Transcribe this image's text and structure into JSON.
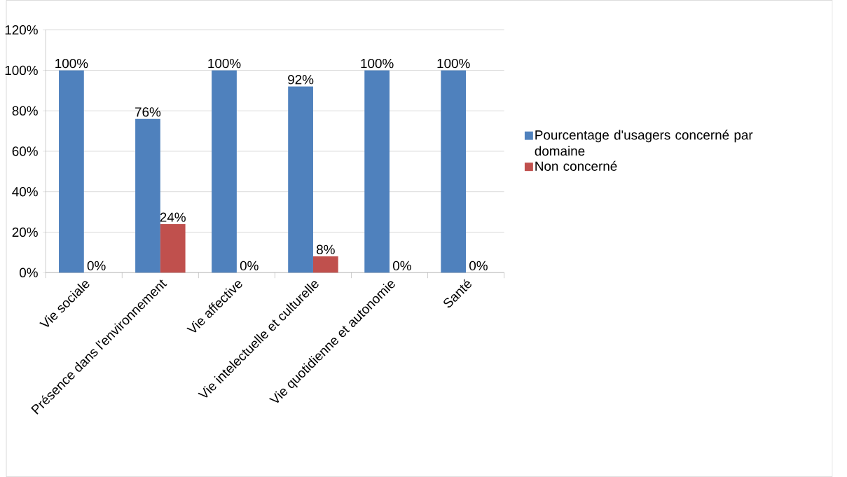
{
  "chart_data": {
    "type": "bar",
    "categories": [
      "Vie sociale",
      "Présence dans l'environnement",
      "Vie affective",
      "Vie intelectuelle et culturelle",
      "Vie quotidienne et autonomie",
      "Santé"
    ],
    "series": [
      {
        "name": "Pourcentage d'usagers concerné par domaine",
        "color": "#4f81bd",
        "values": [
          100,
          76,
          100,
          92,
          100,
          100
        ],
        "value_labels": [
          "100%",
          "76%",
          "100%",
          "92%",
          "100%",
          "100%"
        ]
      },
      {
        "name": "Non concerné",
        "color": "#c0504d",
        "values": [
          0,
          24,
          0,
          8,
          0,
          0
        ],
        "value_labels": [
          "0%",
          "24%",
          "0%",
          "8%",
          "0%",
          "0%"
        ]
      }
    ],
    "ylim": [
      0,
      120
    ],
    "yticks": [
      {
        "value": 0,
        "label": "0%"
      },
      {
        "value": 20,
        "label": "20%"
      },
      {
        "value": 40,
        "label": "40%"
      },
      {
        "value": 60,
        "label": "60%"
      },
      {
        "value": 80,
        "label": "80%"
      },
      {
        "value": 100,
        "label": "100%"
      },
      {
        "value": 120,
        "label": "120%"
      }
    ],
    "grid": "y",
    "legend": "right"
  }
}
